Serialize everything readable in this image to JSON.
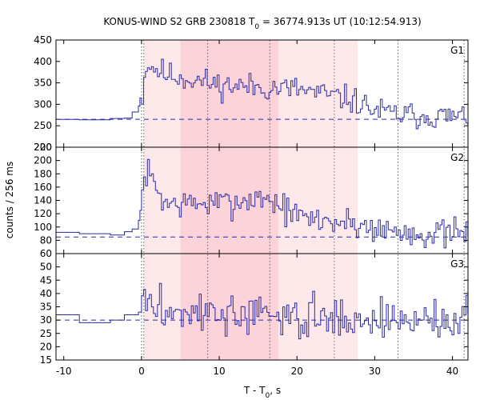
{
  "title": "KONUS-WIND S2 GRB 230818 T",
  "title_sub": "0",
  "title_rest": " = 36774.913s UT (10:12:54.913)",
  "ylabel": "counts / 256 ms",
  "xlabel_main": "T - T",
  "xlabel_sub": "0",
  "xlabel_rest": ", s",
  "colors": {
    "series": "#2a2aa8",
    "background_line": "#2a2aa8",
    "shade_light": "#fde8ea",
    "shade_dark": "#fbd3d8",
    "vline": "#555555",
    "frame": "#000000"
  },
  "chart_data": {
    "type": "line",
    "x_axis": {
      "label": "T - T0, s",
      "range": [
        -11,
        42
      ],
      "ticks": [
        -10,
        0,
        10,
        20,
        30,
        40
      ]
    },
    "vertical_markers": [
      0,
      0.3,
      8.5,
      16.5,
      24.8,
      33.0,
      41.5
    ],
    "shaded_intervals": [
      {
        "range": [
          5.0,
          17.6
        ],
        "shade": "dark"
      },
      {
        "range": [
          0.3,
          27.8
        ],
        "shade": "light"
      }
    ],
    "panels": [
      {
        "name": "G1",
        "ylim": [
          200,
          450
        ],
        "yticks": [
          200,
          250,
          300,
          350,
          400,
          450
        ],
        "background_level": 265,
        "pre_trigger": [
          [
            -11,
            265
          ],
          [
            -8,
            264
          ],
          [
            -4,
            267
          ],
          [
            -2.2,
            268
          ],
          [
            -1.2,
            282
          ],
          [
            -0.4,
            296
          ],
          [
            -0.2,
            315
          ]
        ],
        "post_trigger": {
          "start": 0,
          "step": 0.256,
          "count": 165,
          "mean": [
            [
              0,
              320
            ],
            [
              0.5,
              395
            ],
            [
              3,
              370
            ],
            [
              10,
              345
            ],
            [
              20,
              335
            ],
            [
              27,
              310
            ],
            [
              30,
              285
            ],
            [
              33,
              275
            ],
            [
              42,
              270
            ]
          ],
          "noise": 22,
          "seed": 11
        }
      },
      {
        "name": "G2",
        "ylim": [
          60,
          220
        ],
        "yticks": [
          60,
          80,
          100,
          120,
          140,
          160,
          180,
          200,
          220
        ],
        "background_level": 85,
        "pre_trigger": [
          [
            -11,
            92
          ],
          [
            -8,
            90
          ],
          [
            -4,
            88
          ],
          [
            -2.2,
            93
          ],
          [
            -1.2,
            97
          ],
          [
            -0.4,
            110
          ],
          [
            -0.2,
            125
          ]
        ],
        "post_trigger": {
          "start": 0,
          "step": 0.256,
          "count": 165,
          "mean": [
            [
              0,
              150
            ],
            [
              0.5,
              185
            ],
            [
              3,
              135
            ],
            [
              10,
              135
            ],
            [
              16,
              145
            ],
            [
              20,
              115
            ],
            [
              27,
              105
            ],
            [
              33,
              92
            ],
            [
              42,
              88
            ]
          ],
          "noise": 16,
          "seed": 7
        }
      },
      {
        "name": "G3",
        "ylim": [
          15,
          55
        ],
        "yticks": [
          15,
          20,
          25,
          30,
          35,
          40,
          45,
          50
        ],
        "background_level": 30,
        "pre_trigger": [
          [
            -11,
            32
          ],
          [
            -8,
            29
          ],
          [
            -4,
            30
          ],
          [
            -2.2,
            32
          ],
          [
            -0.4,
            33
          ]
        ],
        "post_trigger": {
          "start": 0,
          "step": 0.256,
          "count": 165,
          "mean": [
            [
              0,
              38
            ],
            [
              2,
              34
            ],
            [
              10,
              32
            ],
            [
              20,
              31
            ],
            [
              33,
              30
            ],
            [
              42,
              30
            ]
          ],
          "noise": 5.5,
          "seed": 3
        }
      }
    ]
  }
}
